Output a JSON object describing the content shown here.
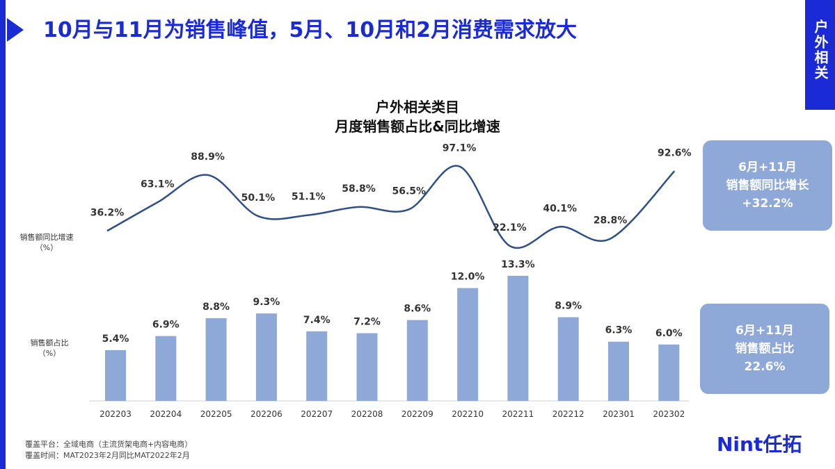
{
  "page_title": "10月与11月为销售峰值，5月、10月和2月消费需求放大",
  "side_tab": "户外相关",
  "colors": {
    "accent": "#1a2bd6",
    "bar": "#8ea8d8",
    "line": "#2e4f86",
    "callout_bg": "#8ea8d8"
  },
  "chart_data": {
    "type": "bar",
    "title": "户外相关类目",
    "subtitle": "月度销售额占比&同比增速",
    "categories": [
      "202203",
      "202204",
      "202205",
      "202206",
      "202207",
      "202208",
      "202209",
      "202210",
      "202211",
      "202212",
      "202301",
      "202302"
    ],
    "series": [
      {
        "name": "销售额同比增速",
        "type": "line",
        "values": [
          36.2,
          63.1,
          88.9,
          50.1,
          51.1,
          58.8,
          56.5,
          97.1,
          22.1,
          40.1,
          28.8,
          92.6
        ],
        "labels": [
          "36.2%",
          "63.1%",
          "88.9%",
          "50.1%",
          "51.1%",
          "58.8%",
          "56.5%",
          "97.1%",
          "22.1%",
          "40.1%",
          "28.8%",
          "92.6%"
        ]
      },
      {
        "name": "销售额占比",
        "type": "bar",
        "values": [
          5.4,
          6.9,
          8.8,
          9.3,
          7.4,
          7.2,
          8.6,
          12.0,
          13.3,
          8.9,
          6.3,
          6.0
        ],
        "labels": [
          "5.4%",
          "6.9%",
          "8.8%",
          "9.3%",
          "7.4%",
          "7.2%",
          "8.6%",
          "12.0%",
          "13.3%",
          "8.9%",
          "6.3%",
          "6.0%"
        ]
      }
    ],
    "line_axis_label": [
      "销售额同比增速",
      "（%）"
    ],
    "bar_axis_label": [
      "销售额占比",
      "（%）"
    ],
    "line_range": [
      20,
      100
    ],
    "bar_range": [
      0,
      13.3
    ],
    "grid": false,
    "legend": "none"
  },
  "callouts": [
    {
      "line1": "6月+11月",
      "line2": "销售额同比增长",
      "line3": "+32.2%"
    },
    {
      "line1": "6月+11月",
      "line2": "销售额占比",
      "line3": "22.6%"
    }
  ],
  "footnotes": [
    "覆盖平台：全域电商（主流货架电商+内容电商）",
    "覆盖时间：MAT2023年2月同比MAT2022年2月"
  ],
  "logo": "Nint任拓"
}
